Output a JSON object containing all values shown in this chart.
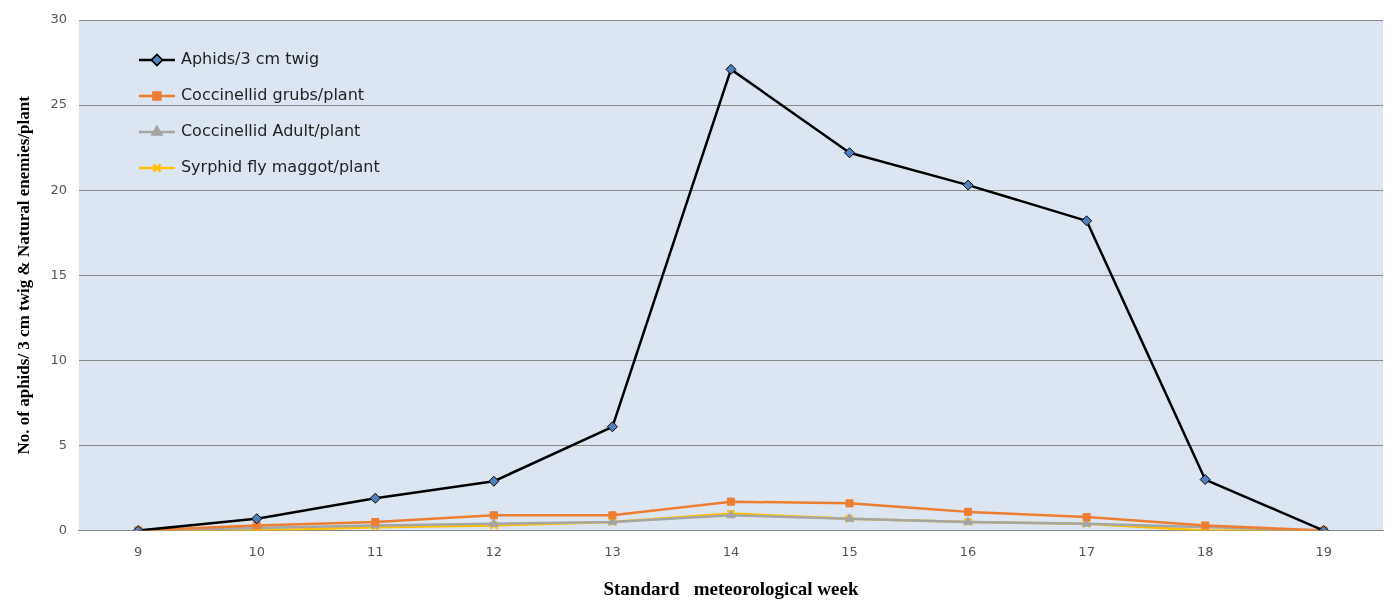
{
  "chart_data": {
    "type": "line",
    "xlabel": "Standard   meteorological week",
    "ylabel": "No. of aphids/ 3 cm twig & Natural enemies/plant",
    "categories": [
      "9",
      "10",
      "11",
      "12",
      "13",
      "14",
      "15",
      "16",
      "17",
      "18",
      "19"
    ],
    "ylim": [
      0,
      30
    ],
    "yticks": [
      0,
      5,
      10,
      15,
      20,
      25,
      30
    ],
    "grid": "y",
    "legend": "top left",
    "series": [
      {
        "name": "Aphids/3 cm twig",
        "color": "#000000",
        "marker": "diamond",
        "values": [
          0,
          0.7,
          1.9,
          2.9,
          6.1,
          27.1,
          22.2,
          20.3,
          18.2,
          3.0,
          0
        ]
      },
      {
        "name": "Coccinellid grubs/plant",
        "color": "#ed7d31",
        "marker": "square",
        "values": [
          0,
          0.3,
          0.5,
          0.9,
          0.9,
          1.7,
          1.6,
          1.1,
          0.8,
          0.3,
          0
        ]
      },
      {
        "name": "Coccinellid Adult/plant",
        "color": "#a5a5a5",
        "marker": "triangle",
        "values": [
          0,
          null,
          0.3,
          0.4,
          0.5,
          0.9,
          0.7,
          0.5,
          0.4,
          null,
          0
        ]
      },
      {
        "name": "Syrphid fly maggot/plant",
        "color": "#ffc000",
        "marker": "cross",
        "values": [
          0,
          0,
          0.2,
          0.3,
          0.5,
          1.0,
          0.7,
          0.5,
          0.4,
          0,
          0
        ]
      }
    ]
  }
}
